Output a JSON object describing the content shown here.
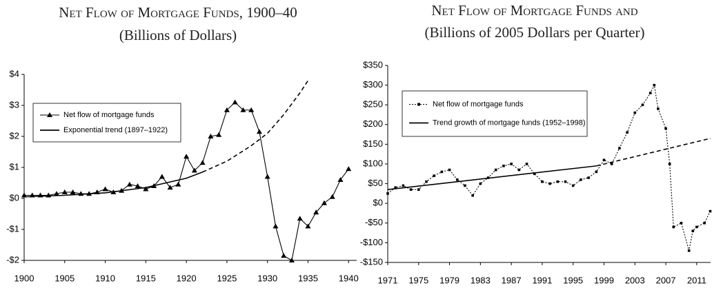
{
  "chart_data": [
    {
      "type": "line",
      "title": "Net Flow of Mortgage Funds, 1900–40",
      "subtitle": "(Billions of Dollars)",
      "xlim": [
        1900,
        1941
      ],
      "xticks": [
        1900,
        1905,
        1910,
        1915,
        1920,
        1925,
        1930,
        1935,
        1940
      ],
      "ylim": [
        -2,
        4
      ],
      "yticks": [
        {
          "value": -2,
          "label": "-$2"
        },
        {
          "value": -1,
          "label": "-$1"
        },
        {
          "value": 0,
          "label": "$0"
        },
        {
          "value": 1,
          "label": "$1"
        },
        {
          "value": 2,
          "label": "$2"
        },
        {
          "value": 3,
          "label": "$3"
        },
        {
          "value": 4,
          "label": "$4"
        }
      ],
      "series": [
        {
          "name": "Net flow of mortgage funds",
          "color": "#000000",
          "marker": "triangle",
          "line_style": "solid",
          "x": [
            1900,
            1901,
            1902,
            1903,
            1904,
            1905,
            1906,
            1907,
            1908,
            1909,
            1910,
            1911,
            1912,
            1913,
            1914,
            1915,
            1916,
            1917,
            1918,
            1919,
            1920,
            1921,
            1922,
            1923,
            1924,
            1925,
            1926,
            1927,
            1928,
            1929,
            1930,
            1931,
            1932,
            1933,
            1934,
            1935,
            1936,
            1937,
            1938,
            1939,
            1940
          ],
          "values": [
            0.1,
            0.1,
            0.1,
            0.1,
            0.15,
            0.2,
            0.2,
            0.15,
            0.15,
            0.2,
            0.3,
            0.2,
            0.25,
            0.45,
            0.4,
            0.3,
            0.4,
            0.7,
            0.35,
            0.45,
            1.35,
            0.9,
            1.15,
            2.0,
            2.05,
            2.85,
            3.1,
            2.85,
            2.85,
            2.15,
            0.7,
            -0.9,
            -1.85,
            -2.0,
            -0.65,
            -0.9,
            -0.45,
            -0.15,
            0.05,
            0.6,
            0.95
          ]
        },
        {
          "name": "Exponential trend (1897–1922)",
          "color": "#000000",
          "marker": "none",
          "line_style": "solid",
          "x": [
            1900,
            1905,
            1910,
            1915,
            1920,
            1922
          ],
          "values": [
            0.05,
            0.1,
            0.18,
            0.35,
            0.65,
            0.85
          ]
        },
        {
          "color": "#000000",
          "marker": "none",
          "line_style": "dashed",
          "x": [
            1922,
            1925,
            1928,
            1930,
            1932,
            1934,
            1935
          ],
          "values": [
            0.85,
            1.2,
            1.7,
            2.1,
            2.7,
            3.4,
            3.8
          ]
        }
      ]
    },
    {
      "type": "line",
      "title": "Net Flow of Mortgage Funds and",
      "subtitle": "(Billions of 2005 Dollars per Quarter)",
      "xlim": [
        1971,
        2012.8
      ],
      "xticks": [
        1971,
        1975,
        1979,
        1983,
        1987,
        1991,
        1995,
        1999,
        2003,
        2007,
        2011
      ],
      "ylim": [
        -150,
        350
      ],
      "yticks": [
        {
          "value": -150,
          "label": "-$150"
        },
        {
          "value": -100,
          "label": "-$100"
        },
        {
          "value": -50,
          "label": "-$50"
        },
        {
          "value": 0,
          "label": "$0"
        },
        {
          "value": 50,
          "label": "$50"
        },
        {
          "value": 100,
          "label": "$100"
        },
        {
          "value": 150,
          "label": "$150"
        },
        {
          "value": 200,
          "label": "$200"
        },
        {
          "value": 250,
          "label": "$250"
        },
        {
          "value": 300,
          "label": "$300"
        },
        {
          "value": 350,
          "label": "$350"
        }
      ],
      "series": [
        {
          "name": "Net flow of mortgage funds",
          "color": "#000000",
          "marker": "square",
          "line_style": "dotted",
          "x": [
            1971,
            1972,
            1973,
            1974,
            1975,
            1976,
            1977,
            1978,
            1979,
            1980,
            1981,
            1982,
            1983,
            1984,
            1985,
            1986,
            1987,
            1988,
            1989,
            1990,
            1991,
            1992,
            1993,
            1994,
            1995,
            1996,
            1997,
            1998,
            1999,
            2000,
            2001,
            2002,
            2003,
            2004,
            2005,
            2005.5,
            2006,
            2007,
            2007.5,
            2008,
            2009,
            2010,
            2010.5,
            2011,
            2012,
            2012.75
          ],
          "values": [
            25,
            40,
            45,
            35,
            35,
            55,
            70,
            80,
            85,
            60,
            45,
            20,
            50,
            65,
            85,
            95,
            100,
            85,
            100,
            75,
            55,
            50,
            55,
            55,
            45,
            60,
            65,
            80,
            110,
            100,
            140,
            180,
            230,
            250,
            280,
            300,
            240,
            190,
            100,
            -60,
            -50,
            -120,
            -70,
            -60,
            -50,
            -20
          ]
        },
        {
          "name": "Trend growth of mortgage funds (1952–1998)",
          "color": "#000000",
          "marker": "none",
          "line_style": "solid",
          "x": [
            1971,
            1998
          ],
          "values": [
            35,
            95
          ]
        },
        {
          "color": "#000000",
          "marker": "none",
          "line_style": "dashed",
          "x": [
            1998,
            2012.8
          ],
          "values": [
            95,
            165
          ]
        }
      ]
    }
  ]
}
